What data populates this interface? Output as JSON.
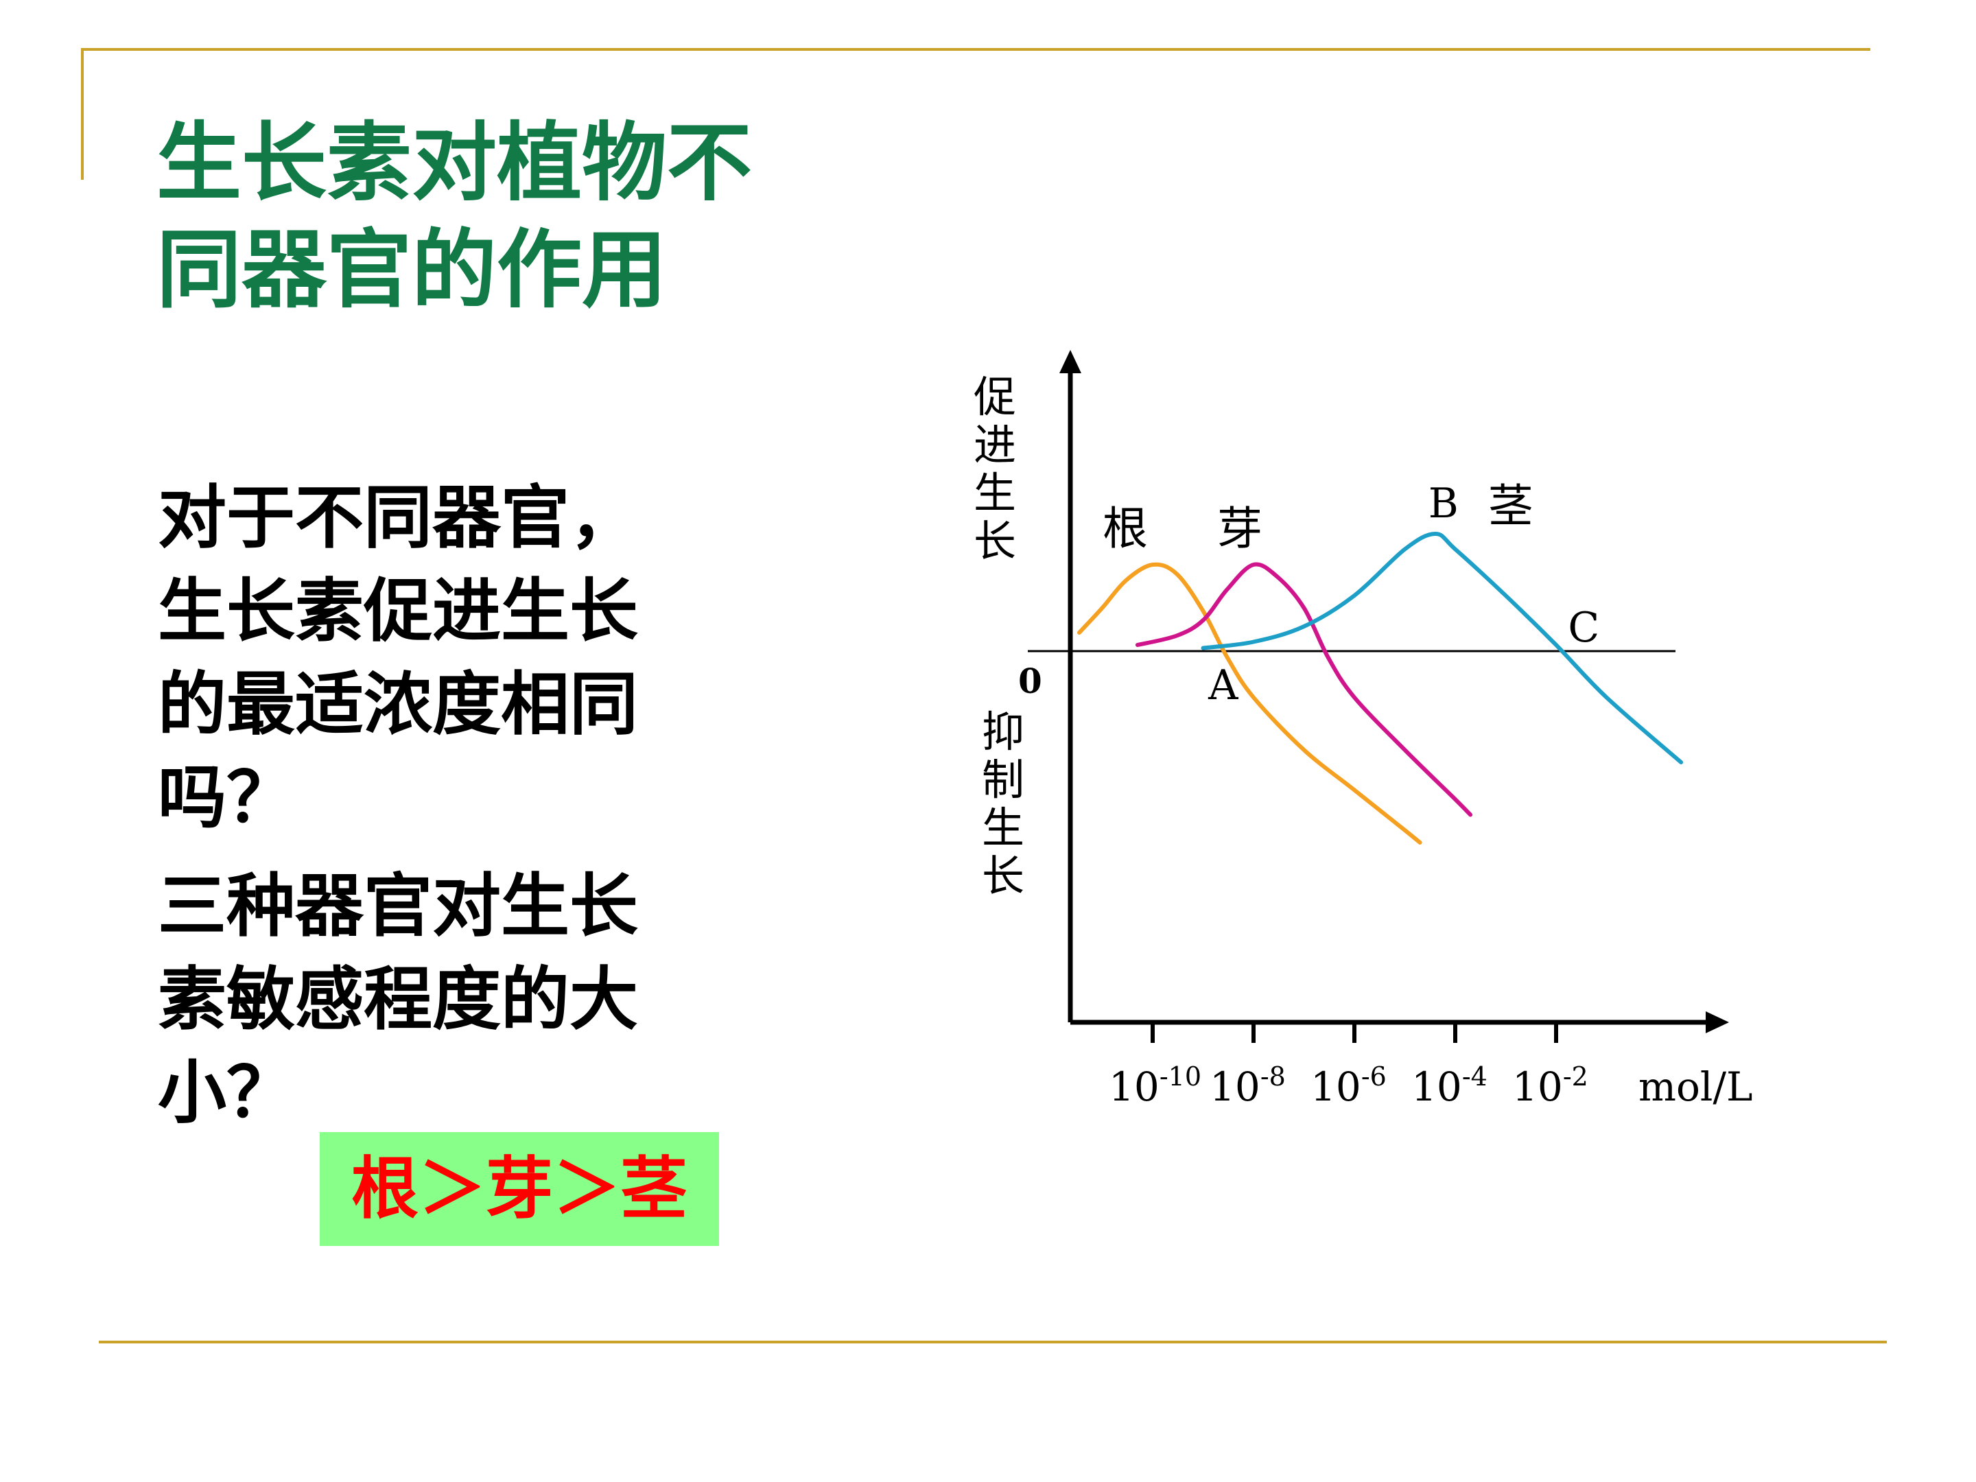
{
  "title_lines": [
    "生长素对植物不",
    "同器官的作用"
  ],
  "question_lines": [
    "对于不同器官，",
    "生长素促进生长",
    "的最适浓度相同",
    "吗？",
    "三种器官对生长",
    "素敏感程度的大",
    "小？"
  ],
  "answer": "根＞芽＞茎",
  "colors": {
    "title": "#117a46",
    "rule": "#c9a227",
    "answer_bg": "#88ff88",
    "answer_text": "#ff0000"
  },
  "chart_data": {
    "type": "line",
    "x_scale": "log",
    "x_unit": "mol/L",
    "x_ticks": [
      {
        "base": "10",
        "exp": "-10",
        "value": 1e-10
      },
      {
        "base": "10",
        "exp": "-8",
        "value": 1e-08
      },
      {
        "base": "10",
        "exp": "-6",
        "value": 1e-06
      },
      {
        "base": "10",
        "exp": "-4",
        "value": 0.0001
      },
      {
        "base": "10",
        "exp": "-2",
        "value": 0.01
      }
    ],
    "origin_label": "0",
    "y_label_positive": "促进生长",
    "y_label_negative": "抑制生长",
    "ylim": [
      -1.0,
      0.6
    ],
    "series": [
      {
        "name": "根",
        "color": "#f5a020",
        "points": [
          {
            "x": 3.5e-12,
            "y": 0.06
          },
          {
            "x": 1e-11,
            "y": 0.14
          },
          {
            "x": 3e-11,
            "y": 0.23
          },
          {
            "x": 1e-10,
            "y": 0.28
          },
          {
            "x": 3e-10,
            "y": 0.25
          },
          {
            "x": 1e-09,
            "y": 0.13
          },
          {
            "x": 3e-09,
            "y": -0.02
          },
          {
            "x": 1e-08,
            "y": -0.15
          },
          {
            "x": 1e-07,
            "y": -0.32
          },
          {
            "x": 1e-06,
            "y": -0.45
          },
          {
            "x": 1e-05,
            "y": -0.58
          },
          {
            "x": 2e-05,
            "y": -0.62
          }
        ]
      },
      {
        "name": "芽",
        "color": "#d0158c",
        "points": [
          {
            "x": 5e-11,
            "y": 0.02
          },
          {
            "x": 3e-10,
            "y": 0.05
          },
          {
            "x": 1e-09,
            "y": 0.1
          },
          {
            "x": 3e-09,
            "y": 0.2
          },
          {
            "x": 1e-08,
            "y": 0.28
          },
          {
            "x": 3e-08,
            "y": 0.24
          },
          {
            "x": 1e-07,
            "y": 0.14
          },
          {
            "x": 3e-07,
            "y": -0.02
          },
          {
            "x": 1e-06,
            "y": -0.15
          },
          {
            "x": 1e-05,
            "y": -0.32
          },
          {
            "x": 0.0001,
            "y": -0.48
          },
          {
            "x": 0.0002,
            "y": -0.53
          }
        ]
      },
      {
        "name": "茎",
        "color": "#1e9fc8",
        "points": [
          {
            "x": 1e-09,
            "y": 0.01
          },
          {
            "x": 1e-08,
            "y": 0.03
          },
          {
            "x": 1e-07,
            "y": 0.08
          },
          {
            "x": 1e-06,
            "y": 0.18
          },
          {
            "x": 1e-05,
            "y": 0.33
          },
          {
            "x": 4e-05,
            "y": 0.38
          },
          {
            "x": 0.0001,
            "y": 0.33
          },
          {
            "x": 0.001,
            "y": 0.18
          },
          {
            "x": 0.01,
            "y": 0.02
          },
          {
            "x": 0.1,
            "y": -0.15
          },
          {
            "x": 3,
            "y": -0.36
          }
        ]
      }
    ],
    "annotations": [
      {
        "label": "A",
        "x": 2.5e-09,
        "y": 0
      },
      {
        "label": "B",
        "x": 4e-05,
        "y": 0.38
      },
      {
        "label": "C",
        "x": 0.013,
        "y": 0
      }
    ]
  }
}
